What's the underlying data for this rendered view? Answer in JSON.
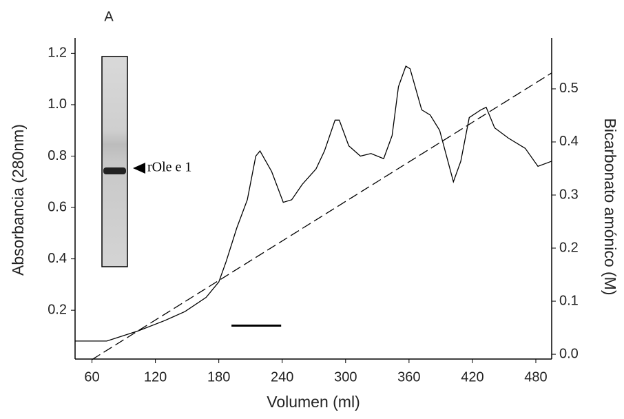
{
  "chart_data": {
    "type": "line",
    "panel_label": "A",
    "xlabel": "Volumen (ml)",
    "ylabel": "Absorbancia (280nm)",
    "y2label": "Bicarbonato amónico (M)",
    "inset_label": "rOle e 1",
    "xlim": [
      44,
      495
    ],
    "ylim": [
      0.01,
      1.26
    ],
    "y2lim": [
      -0.009,
      0.596
    ],
    "xticks": [
      60,
      120,
      180,
      240,
      300,
      360,
      420,
      480
    ],
    "yticks": [
      0.2,
      0.4,
      0.6,
      0.8,
      {
        "value": 1,
        "label": "1.0"
      },
      1.2
    ],
    "y2ticks": [
      {
        "value": 0,
        "label": "0.0"
      },
      0.1,
      0.2,
      0.3,
      0.4,
      0.5
    ],
    "series": [
      {
        "color": "#000000",
        "dash": false,
        "x": [
          44,
          60,
          74,
          104,
          129,
          148,
          168,
          180,
          187,
          197,
          207,
          215,
          219,
          230,
          241,
          249,
          259,
          272,
          280,
          290,
          294,
          303,
          314,
          324,
          336,
          344,
          350,
          357,
          361,
          372,
          380,
          389,
          402,
          409,
          417,
          428,
          433,
          441,
          454,
          470,
          482,
          495
        ],
        "values": [
          0.08,
          0.08,
          0.08,
          0.12,
          0.16,
          0.195,
          0.25,
          0.31,
          0.39,
          0.52,
          0.63,
          0.8,
          0.82,
          0.74,
          0.62,
          0.63,
          0.69,
          0.75,
          0.82,
          0.94,
          0.94,
          0.84,
          0.8,
          0.81,
          0.79,
          0.88,
          1.07,
          1.15,
          1.14,
          0.98,
          0.96,
          0.9,
          0.7,
          0.78,
          0.95,
          0.98,
          0.99,
          0.91,
          0.87,
          0.83,
          0.76,
          0.78
        ]
      },
      {
        "color": "#000000",
        "dash": true,
        "axis": "y2",
        "x": [
          60,
          495
        ],
        "values": [
          -0.01,
          0.53
        ]
      }
    ],
    "fraction": {
      "x": [
        192,
        239
      ],
      "y": 0.14,
      "color": "#000000"
    }
  }
}
